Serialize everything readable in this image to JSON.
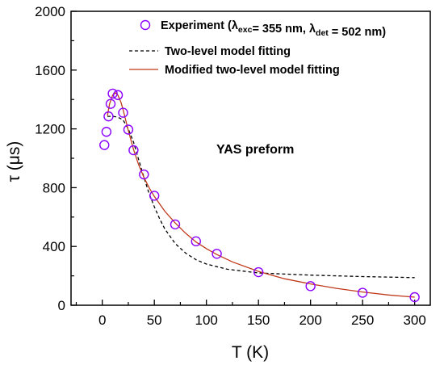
{
  "chart_data": {
    "type": "scatter",
    "xlabel": "T (K)",
    "ylabel": "τ (μs)",
    "xlim": [
      -30,
      315
    ],
    "ylim": [
      0,
      2000
    ],
    "xticks": [
      0,
      50,
      100,
      150,
      200,
      250,
      300
    ],
    "yticks": [
      0,
      400,
      800,
      1200,
      1600,
      2000
    ],
    "annotation": "YAS preform",
    "legend_position": "top-right",
    "series": [
      {
        "name": "Experiment (λexc= 355 nm, λdet = 502 nm)",
        "legend": {
          "main": "Experiment (λ",
          "sub1": "exc",
          "mid": "= 355 nm, λ",
          "sub2": "det",
          "end": " = 502 nm)"
        },
        "kind": "markers",
        "color": "#8B00FF",
        "x": [
          2,
          4,
          6,
          8,
          10,
          15,
          20,
          25,
          30,
          40,
          50,
          70,
          90,
          110,
          150,
          200,
          250,
          300
        ],
        "y": [
          1090,
          1180,
          1285,
          1370,
          1440,
          1430,
          1310,
          1195,
          1055,
          890,
          745,
          550,
          435,
          350,
          225,
          130,
          85,
          55
        ]
      },
      {
        "name": "Two-level model fitting",
        "kind": "dashed-line",
        "color": "#000000",
        "x": [
          5,
          10,
          15,
          20,
          25,
          30,
          35,
          40,
          45,
          50,
          55,
          60,
          70,
          80,
          90,
          100,
          120,
          150,
          200,
          250,
          300
        ],
        "y": [
          1285,
          1285,
          1280,
          1260,
          1200,
          1110,
          990,
          870,
          760,
          670,
          590,
          520,
          420,
          355,
          310,
          280,
          245,
          220,
          205,
          195,
          188
        ]
      },
      {
        "name": "Modified two-level model fitting",
        "kind": "line",
        "color": "#C0391B",
        "x": [
          5,
          7,
          10,
          13,
          15,
          18,
          20,
          25,
          30,
          35,
          40,
          45,
          50,
          60,
          70,
          80,
          90,
          100,
          110,
          125,
          150,
          175,
          200,
          225,
          250,
          275,
          300
        ],
        "y": [
          1290,
          1370,
          1430,
          1445,
          1430,
          1380,
          1330,
          1190,
          1060,
          955,
          870,
          800,
          740,
          640,
          560,
          490,
          430,
          385,
          345,
          295,
          230,
          180,
          145,
          115,
          90,
          70,
          55
        ]
      }
    ]
  }
}
